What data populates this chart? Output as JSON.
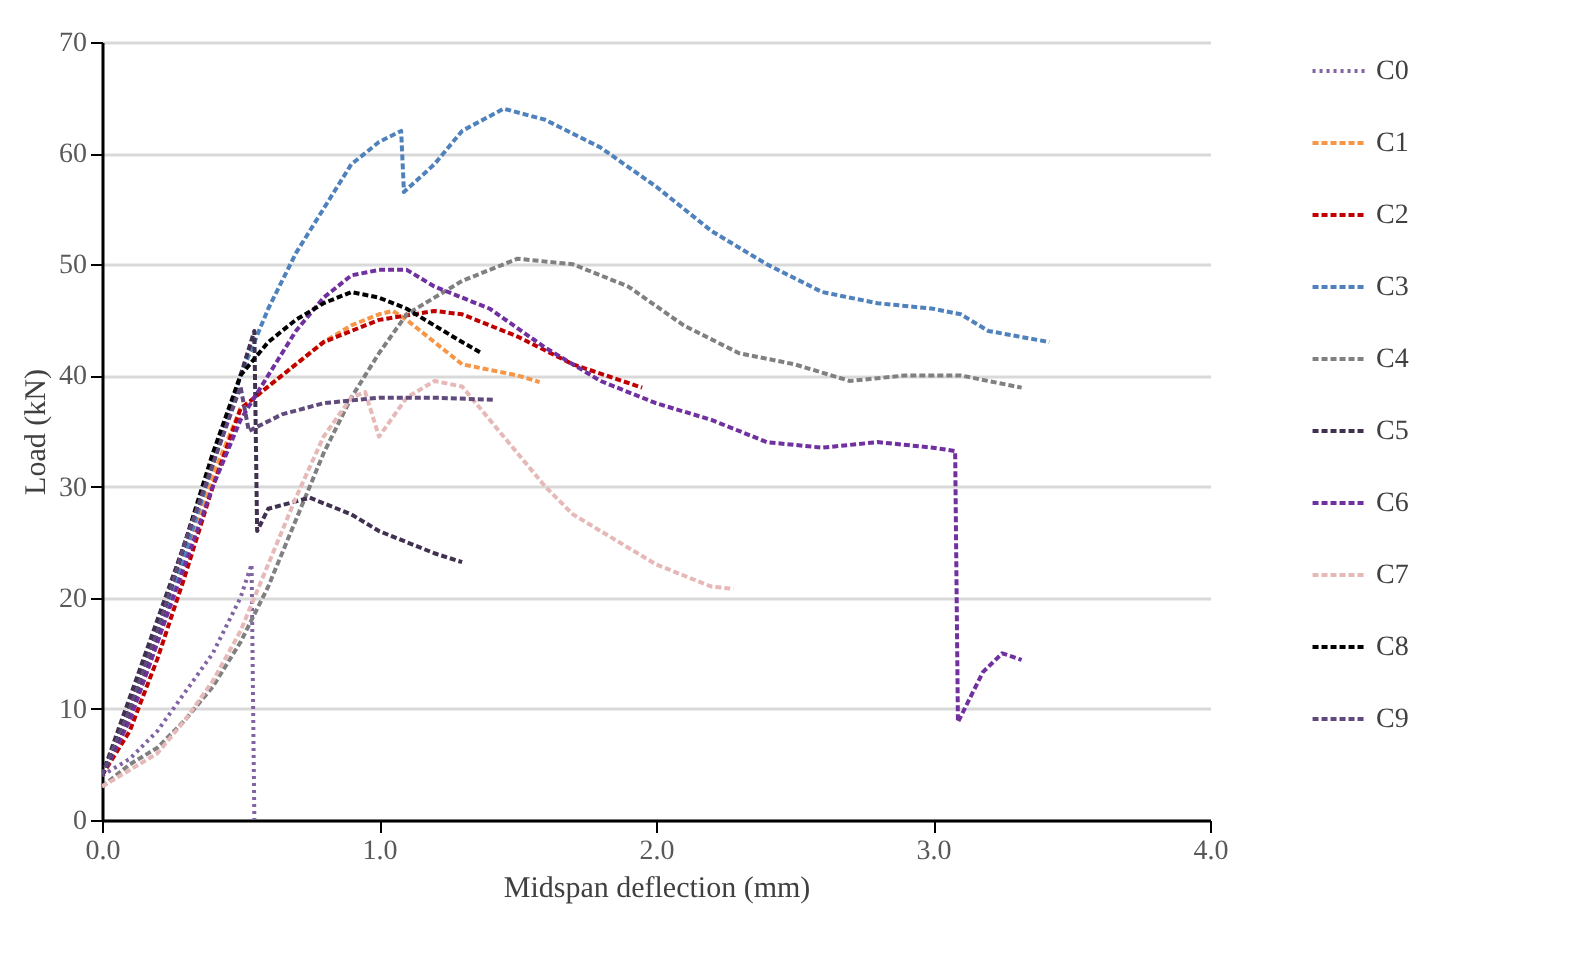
{
  "chart_data": {
    "type": "line",
    "xlabel": "Midspan deflection (mm)",
    "ylabel": "Load (kN)",
    "xlim": [
      0,
      4
    ],
    "xticks": [
      {
        "value": 0,
        "label": "0.0"
      },
      {
        "value": 1,
        "label": "1.0"
      },
      {
        "value": 2,
        "label": "2.0"
      },
      {
        "value": 3,
        "label": "3.0"
      },
      {
        "value": 4,
        "label": "4.0"
      }
    ],
    "ylim": [
      0,
      70
    ],
    "yticks": [
      0,
      10,
      20,
      30,
      40,
      50,
      60,
      70
    ],
    "grid": "y",
    "legend": "right",
    "marker": "none",
    "series": [
      {
        "name": "C0",
        "color": "#8064a2",
        "line_style": "dotted",
        "x": [
          0,
          0.1,
          0.2,
          0.3,
          0.4,
          0.5,
          0.54,
          0.55
        ],
        "values": [
          4,
          5.5,
          8,
          11.5,
          15,
          20,
          23,
          0
        ]
      },
      {
        "name": "C1",
        "color": "#f79646",
        "line_style": "dashed",
        "x": [
          0,
          0.1,
          0.2,
          0.3,
          0.4,
          0.5,
          0.6,
          0.7,
          0.8,
          0.9,
          1.0,
          1.05,
          1.1,
          1.2,
          1.3,
          1.4,
          1.5,
          1.58
        ],
        "values": [
          4,
          9,
          16,
          24,
          31,
          37,
          39,
          41,
          43,
          44.5,
          45.5,
          45.8,
          45,
          43,
          41,
          40.5,
          40,
          39.4
        ]
      },
      {
        "name": "C2",
        "color": "#c00000",
        "line_style": "dashed",
        "x": [
          0,
          0.1,
          0.2,
          0.3,
          0.4,
          0.5,
          0.6,
          0.7,
          0.8,
          1.0,
          1.2,
          1.3,
          1.5,
          1.7,
          1.95
        ],
        "values": [
          4,
          8,
          14.5,
          22,
          30,
          37,
          39,
          41,
          43,
          45,
          45.8,
          45.5,
          43.5,
          41,
          38.9
        ]
      },
      {
        "name": "C3",
        "color": "#4f81bd",
        "line_style": "dashed",
        "x": [
          0,
          0.1,
          0.2,
          0.3,
          0.4,
          0.5,
          0.6,
          0.7,
          0.8,
          0.9,
          1.0,
          1.08,
          1.09,
          1.2,
          1.3,
          1.45,
          1.6,
          1.8,
          2.0,
          2.2,
          2.4,
          2.6,
          2.8,
          3.0,
          3.1,
          3.2,
          3.42
        ],
        "values": [
          4,
          9,
          16,
          24,
          32,
          40,
          46,
          51,
          55,
          59,
          61,
          62,
          56.5,
          59,
          62,
          64,
          63,
          60.5,
          57,
          53,
          50,
          47.5,
          46.5,
          46,
          45.5,
          44,
          43
        ]
      },
      {
        "name": "C4",
        "color": "#808080",
        "line_style": "dashed",
        "x": [
          0,
          0.1,
          0.2,
          0.3,
          0.4,
          0.5,
          0.6,
          0.7,
          0.8,
          0.9,
          1.0,
          1.1,
          1.2,
          1.3,
          1.5,
          1.7,
          1.9,
          2.1,
          2.3,
          2.5,
          2.7,
          2.9,
          3.1,
          3.32
        ],
        "values": [
          3,
          5,
          6.5,
          9,
          12,
          16,
          21,
          27,
          33,
          38,
          42,
          45.5,
          47,
          48.5,
          50.5,
          50,
          48,
          44.5,
          42,
          41,
          39.5,
          40,
          40,
          38.9
        ]
      },
      {
        "name": "C5",
        "color": "#403151",
        "line_style": "dashed",
        "x": [
          0,
          0.1,
          0.2,
          0.3,
          0.4,
          0.5,
          0.55,
          0.56,
          0.6,
          0.75,
          0.9,
          1.0,
          1.1,
          1.2,
          1.3
        ],
        "values": [
          4,
          11,
          18,
          25,
          32,
          40,
          44,
          26,
          28,
          29,
          27.5,
          26,
          25,
          24,
          23.2
        ]
      },
      {
        "name": "C6",
        "color": "#7030a0",
        "line_style": "dashed",
        "x": [
          0,
          0.1,
          0.2,
          0.3,
          0.4,
          0.5,
          0.6,
          0.7,
          0.8,
          0.9,
          1.0,
          1.1,
          1.2,
          1.4,
          1.6,
          1.8,
          2.0,
          2.2,
          2.4,
          2.6,
          2.8,
          3.0,
          3.08,
          3.09,
          3.18,
          3.25,
          3.32
        ],
        "values": [
          4,
          9,
          16,
          23,
          30,
          36,
          40,
          44,
          47,
          49,
          49.5,
          49.5,
          48,
          46,
          42.5,
          39.5,
          37.5,
          36,
          34,
          33.5,
          34,
          33.5,
          33.2,
          8.8,
          13.3,
          15,
          14.4
        ]
      },
      {
        "name": "C7",
        "color": "#e6b9b8",
        "line_style": "dashed",
        "x": [
          0,
          0.1,
          0.2,
          0.3,
          0.4,
          0.5,
          0.6,
          0.7,
          0.8,
          0.9,
          0.95,
          1.0,
          1.1,
          1.2,
          1.3,
          1.4,
          1.5,
          1.6,
          1.7,
          1.8,
          1.9,
          2.0,
          2.1,
          2.2,
          2.28
        ],
        "values": [
          3,
          4.5,
          6,
          9,
          12.5,
          17,
          23,
          29,
          34.5,
          38,
          38.5,
          34.5,
          38,
          39.5,
          39,
          36,
          33,
          30,
          27.5,
          26,
          24.5,
          23,
          22,
          21,
          20.8
        ]
      },
      {
        "name": "C8",
        "color": "#000000",
        "line_style": "dashed",
        "x": [
          0,
          0.1,
          0.2,
          0.3,
          0.4,
          0.5,
          0.6,
          0.7,
          0.8,
          0.9,
          1.0,
          1.1,
          1.2,
          1.3,
          1.37
        ],
        "values": [
          4,
          10,
          17,
          25,
          33,
          40,
          43,
          45,
          46.5,
          47.5,
          47,
          46,
          44.5,
          43,
          42
        ]
      },
      {
        "name": "C9",
        "color": "#604a7b",
        "line_style": "dashed",
        "x": [
          0,
          0.1,
          0.2,
          0.3,
          0.4,
          0.5,
          0.53,
          0.65,
          0.8,
          1.0,
          1.2,
          1.42
        ],
        "values": [
          4,
          10,
          17,
          25,
          32,
          39,
          35,
          36.5,
          37.5,
          38,
          38,
          37.8
        ]
      }
    ]
  }
}
